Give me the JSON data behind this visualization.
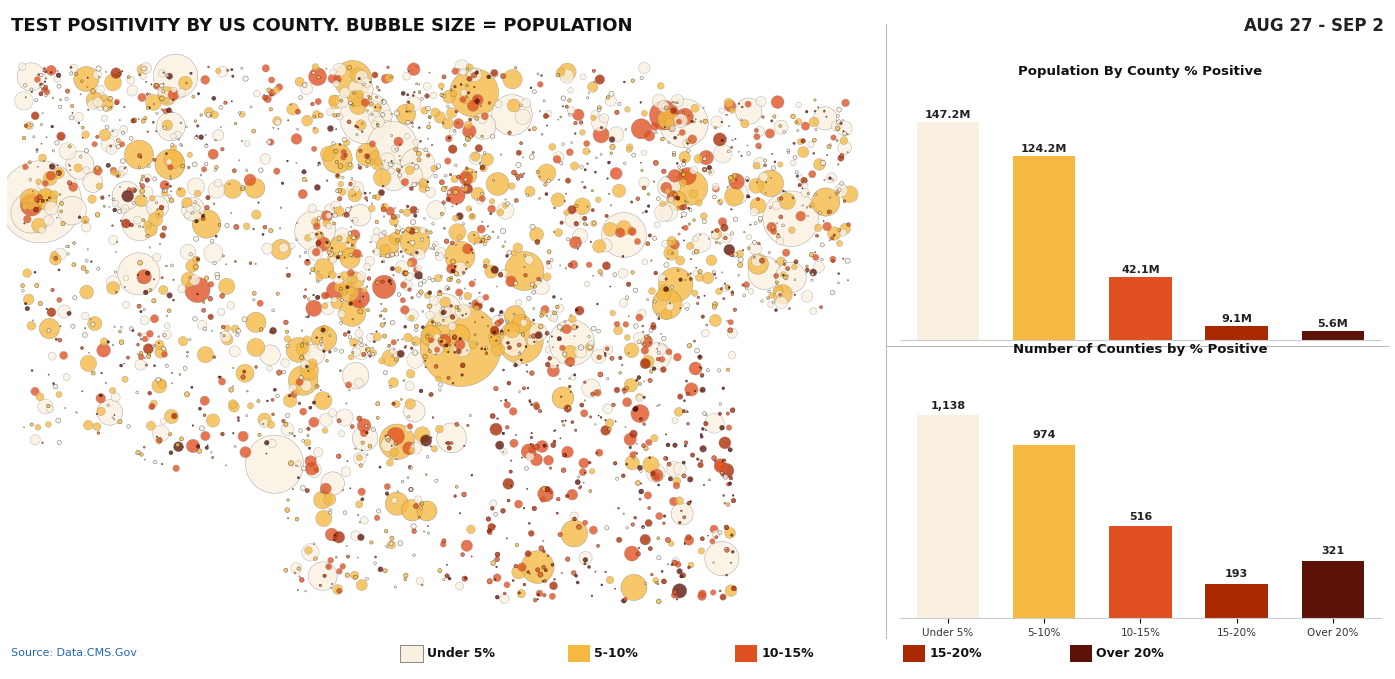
{
  "title_left": "TEST POSITIVITY BY US COUNTY. BUBBLE SIZE = POPULATION",
  "title_right": "AUG 27 - SEP 2",
  "source": "Source: Data.CMS.Gov",
  "categories": [
    "Under 5%",
    "5-10%",
    "10-15%",
    "15-20%",
    "Over 20%"
  ],
  "colors": [
    "#FAF0E0",
    "#F5B942",
    "#E05020",
    "#AA2800",
    "#5C1208"
  ],
  "bar_colors": [
    "#FAF0E0",
    "#F5B942",
    "#E05020",
    "#AA2800",
    "#5C1208"
  ],
  "pop_values": [
    147.2,
    124.2,
    42.1,
    9.1,
    5.6
  ],
  "pop_labels": [
    "147.2M",
    "124.2M",
    "42.1M",
    "9.1M",
    "5.6M"
  ],
  "county_values": [
    1138,
    974,
    516,
    193,
    321
  ],
  "county_labels": [
    "1,138",
    "974",
    "516",
    "193",
    "321"
  ],
  "chart1_title": "Population By County % Positive",
  "chart2_title": "Number of Counties by % Positive",
  "legend_labels": [
    "Under 5%",
    "5-10%",
    "10-15%",
    "15-20%",
    "Over 20%"
  ],
  "bg_color": "#FFFFFF",
  "map_bg": "#E8E4DC"
}
